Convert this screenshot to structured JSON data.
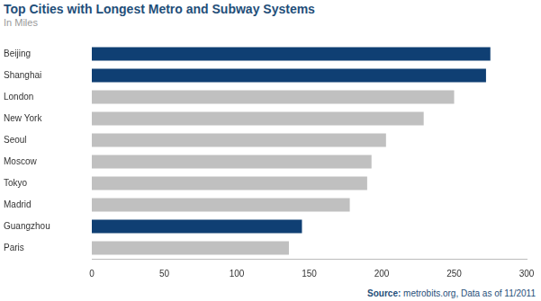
{
  "chart_data": {
    "type": "bar",
    "orientation": "horizontal",
    "title": "Top Cities with Longest Metro and Subway Systems",
    "subtitle": "In Miles",
    "source": "Source: metrobits.org, Data as of 11/2011",
    "categories": [
      "Beijing",
      "Shanghai",
      "London",
      "New York",
      "Seoul",
      "Moscow",
      "Tokyo",
      "Madrid",
      "Guangzhou",
      "Paris"
    ],
    "values": [
      275,
      272,
      250,
      229,
      203,
      193,
      190,
      178,
      145,
      136
    ],
    "colors": [
      "#0f3f73",
      "#0f3f73",
      "#c0c0c0",
      "#c0c0c0",
      "#c0c0c0",
      "#c0c0c0",
      "#c0c0c0",
      "#c0c0c0",
      "#0f3f73",
      "#c0c0c0"
    ],
    "xlim": [
      0,
      300
    ],
    "xticks": [
      0,
      50,
      100,
      150,
      200,
      250,
      300
    ],
    "grid": false
  }
}
